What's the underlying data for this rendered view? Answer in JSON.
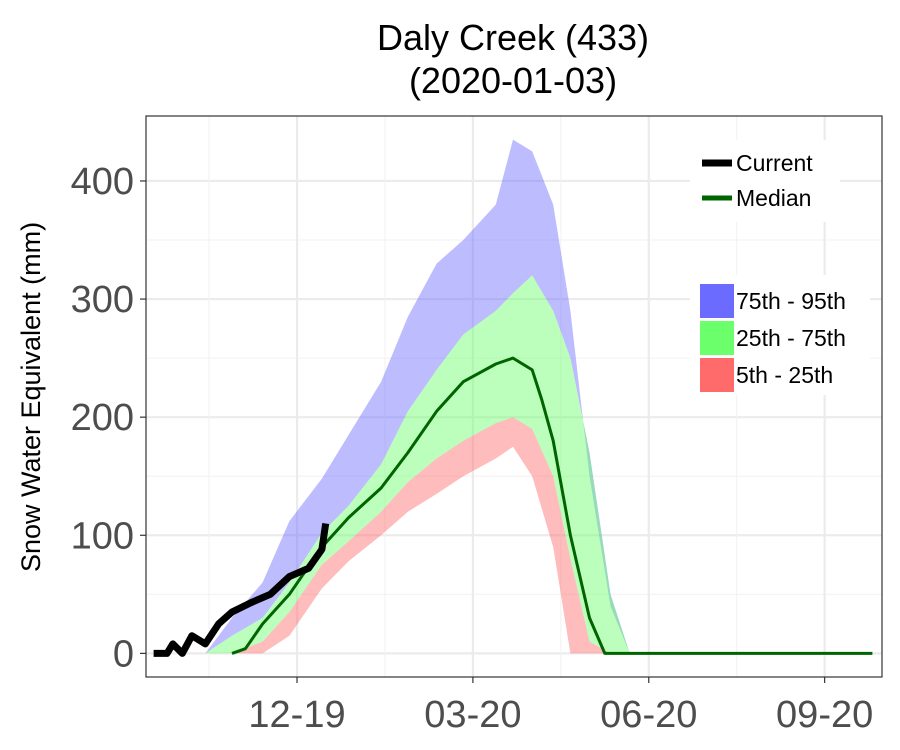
{
  "chart_data": {
    "type": "area",
    "title": "Daly Creek (433)",
    "subtitle": "(2020-01-03)",
    "xlabel": "",
    "ylabel": "Snow Water Equivalent (mm)",
    "x_axis": "date",
    "x_range": [
      "2019-10-01",
      "2020-10-20"
    ],
    "ylim": [
      -20,
      455
    ],
    "y_ticks": [
      0,
      100,
      200,
      300,
      400
    ],
    "x_ticks": [
      {
        "date": "2019-12-19",
        "label": "12-19"
      },
      {
        "date": "2020-03-20",
        "label": "03-20"
      },
      {
        "date": "2020-06-20",
        "label": "06-20"
      },
      {
        "date": "2020-09-20",
        "label": "09-20"
      }
    ],
    "grid": true,
    "legend_lines": [
      {
        "name": "Current",
        "color": "#000000"
      },
      {
        "name": "Median",
        "color": "#006400"
      }
    ],
    "legend_bands": [
      {
        "name": "75th - 95th",
        "color": "#6b6bff"
      },
      {
        "name": "25th - 75th",
        "color": "#6bff6b"
      },
      {
        "name": "5th - 25th",
        "color": "#ff6b6b"
      }
    ],
    "band_dates": [
      "2019-11-01",
      "2019-11-15",
      "2019-12-01",
      "2019-12-15",
      "2020-01-01",
      "2020-01-15",
      "2020-02-01",
      "2020-02-15",
      "2020-03-01",
      "2020-03-15",
      "2020-04-01",
      "2020-04-10",
      "2020-04-20",
      "2020-05-01",
      "2020-05-10",
      "2020-05-20",
      "2020-05-31",
      "2020-06-10",
      "2020-06-15"
    ],
    "series": [
      {
        "name": "95th",
        "values": [
          0,
          30,
          60,
          112,
          148,
          185,
          230,
          285,
          330,
          350,
          380,
          435,
          425,
          380,
          290,
          150,
          40,
          0,
          0
        ]
      },
      {
        "name": "75th",
        "values": [
          0,
          15,
          30,
          60,
          102,
          125,
          160,
          205,
          240,
          270,
          290,
          305,
          320,
          290,
          250,
          170,
          50,
          0,
          0
        ]
      },
      {
        "name": "25th",
        "values": [
          0,
          0,
          10,
          35,
          75,
          95,
          120,
          145,
          165,
          180,
          195,
          200,
          190,
          150,
          80,
          10,
          0,
          0,
          0
        ]
      },
      {
        "name": "5th",
        "values": [
          0,
          0,
          0,
          15,
          55,
          78,
          100,
          120,
          135,
          150,
          165,
          175,
          150,
          90,
          0,
          0,
          0,
          0,
          0
        ]
      },
      {
        "name": "Median",
        "dates": [
          "2019-11-15",
          "2019-11-22",
          "2019-12-01",
          "2019-12-15",
          "2020-01-01",
          "2020-01-15",
          "2020-02-01",
          "2020-02-15",
          "2020-03-01",
          "2020-03-15",
          "2020-04-01",
          "2020-04-10",
          "2020-04-20",
          "2020-04-25",
          "2020-05-01",
          "2020-05-10",
          "2020-05-20",
          "2020-05-28",
          "2020-06-05",
          "2020-10-15"
        ],
        "values": [
          0,
          4,
          25,
          50,
          90,
          115,
          140,
          170,
          205,
          230,
          245,
          250,
          240,
          215,
          180,
          100,
          30,
          0,
          0,
          0
        ]
      },
      {
        "name": "Current",
        "dates": [
          "2019-10-05",
          "2019-10-12",
          "2019-10-15",
          "2019-10-20",
          "2019-10-25",
          "2019-11-01",
          "2019-11-08",
          "2019-11-15",
          "2019-11-25",
          "2019-12-05",
          "2019-12-15",
          "2019-12-25",
          "2020-01-01",
          "2020-01-03"
        ],
        "values": [
          0,
          0,
          8,
          0,
          15,
          8,
          25,
          35,
          43,
          50,
          65,
          72,
          88,
          110
        ]
      }
    ]
  }
}
